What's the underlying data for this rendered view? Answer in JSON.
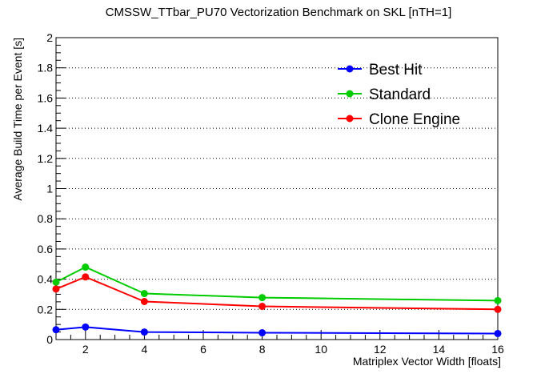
{
  "chart_data": {
    "type": "line",
    "title": "CMSSW_TTbar_PU70 Vectorization Benchmark on SKL [nTH=1]",
    "xlabel": "Matriplex Vector Width [floats]",
    "ylabel": "Average Build Time per Event [s]",
    "xlim": [
      1,
      16
    ],
    "ylim": [
      0,
      2
    ],
    "x_ticks": [
      2,
      4,
      6,
      8,
      10,
      12,
      14,
      16
    ],
    "y_ticks": [
      0,
      0.2,
      0.4,
      0.6,
      0.8,
      1,
      1.2,
      1.4,
      1.6,
      1.8,
      2
    ],
    "grid": "horizontal-dotted",
    "legend_position": "top-right",
    "x": [
      1,
      2,
      4,
      8,
      16
    ],
    "series": [
      {
        "name": "Best Hit",
        "color": "#0000ff",
        "values": [
          0.065,
          0.083,
          0.05,
          0.045,
          0.04
        ],
        "errors": [
          0.008,
          0.008,
          0.005,
          0.004,
          0.004
        ]
      },
      {
        "name": "Standard",
        "color": "#00cc00",
        "values": [
          0.38,
          0.48,
          0.305,
          0.278,
          0.258
        ],
        "errors": [
          0.012,
          0.015,
          0.01,
          0.01,
          0.01
        ]
      },
      {
        "name": "Clone Engine",
        "color": "#ff0000",
        "values": [
          0.335,
          0.415,
          0.252,
          0.22,
          0.2
        ],
        "errors": [
          0.012,
          0.012,
          0.01,
          0.01,
          0.01
        ]
      }
    ]
  }
}
